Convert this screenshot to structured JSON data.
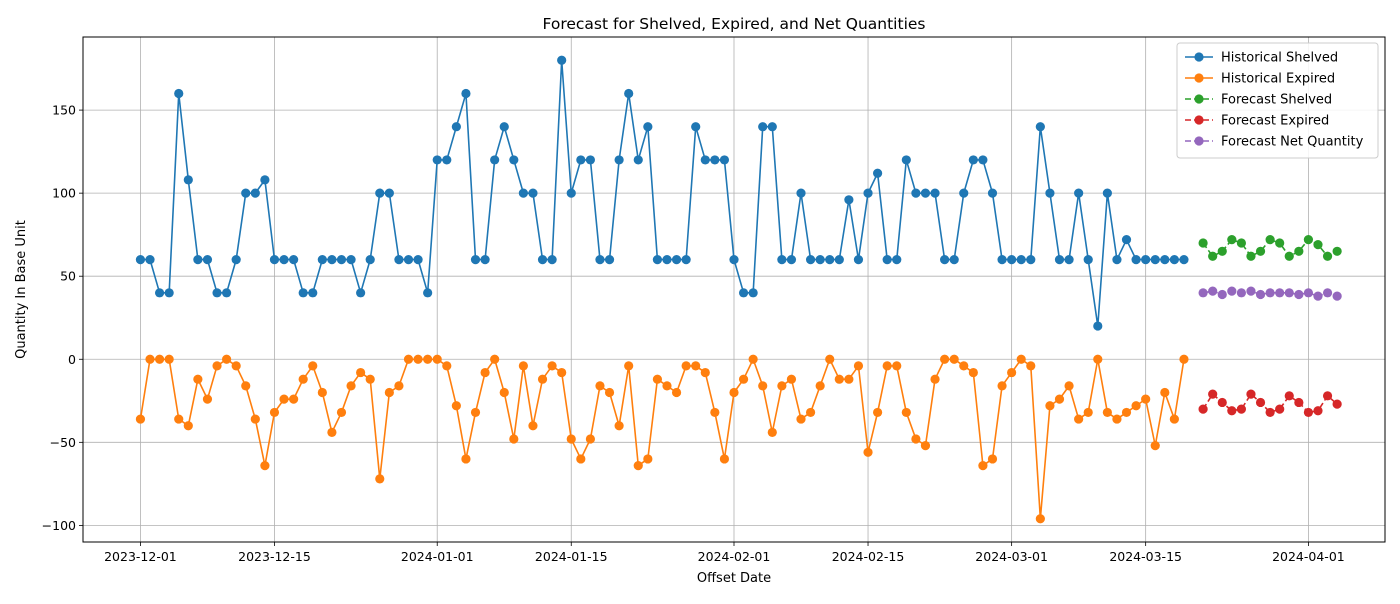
{
  "chart_data": {
    "type": "line",
    "title": "Forecast for Shelved, Expired, and Net Quantities",
    "xlabel": "Offset Date",
    "ylabel": "Quantity In Base Unit",
    "x_type": "date",
    "xlim": [
      "2023-11-25",
      "2024-04-09"
    ],
    "ylim": [
      -110,
      194
    ],
    "x_ticks": [
      "2023-12-01",
      "2023-12-15",
      "2024-01-01",
      "2024-01-15",
      "2024-02-01",
      "2024-02-15",
      "2024-03-01",
      "2024-03-15",
      "2024-04-01"
    ],
    "y_ticks": [
      -100,
      -50,
      0,
      50,
      100,
      150
    ],
    "grid": true,
    "legend_position": "upper right",
    "series": [
      {
        "name": "Historical Shelved",
        "color": "#1f77b4",
        "linestyle": "solid",
        "marker": "circle",
        "start_date": "2023-12-01",
        "values": [
          60,
          60,
          40,
          40,
          160,
          108,
          60,
          60,
          40,
          40,
          60,
          100,
          100,
          108,
          60,
          60,
          60,
          40,
          40,
          60,
          60,
          60,
          60,
          40,
          60,
          100,
          100,
          60,
          60,
          60,
          40,
          120,
          120,
          140,
          160,
          60,
          60,
          120,
          140,
          120,
          100,
          100,
          60,
          60,
          180,
          100,
          120,
          120,
          60,
          60,
          120,
          160,
          120,
          140,
          60,
          60,
          60,
          60,
          140,
          120,
          120,
          120,
          60,
          40,
          40,
          140,
          140,
          60,
          60,
          100,
          60,
          60,
          60,
          60,
          96,
          60,
          100,
          112,
          60,
          60,
          120,
          100,
          100,
          100,
          60,
          60,
          100,
          120,
          120,
          100,
          60,
          60,
          60,
          60,
          140,
          100,
          60,
          60,
          100,
          60,
          20,
          100,
          60,
          72,
          60,
          60,
          60,
          60,
          60,
          60
        ]
      },
      {
        "name": "Historical Expired",
        "color": "#ff7f0e",
        "linestyle": "solid",
        "marker": "circle",
        "start_date": "2023-12-01",
        "values": [
          -36,
          0,
          0,
          0,
          -36,
          -40,
          -12,
          -24,
          -4,
          0,
          -4,
          -16,
          -36,
          -64,
          -32,
          -24,
          -24,
          -12,
          -4,
          -20,
          -44,
          -32,
          -16,
          -8,
          -12,
          -72,
          -20,
          -16,
          0,
          0,
          0,
          0,
          -4,
          -28,
          -60,
          -32,
          -8,
          0,
          -20,
          -48,
          -4,
          -40,
          -12,
          -4,
          -8,
          -48,
          -60,
          -48,
          -16,
          -20,
          -40,
          -4,
          -64,
          -60,
          -12,
          -16,
          -20,
          -4,
          -4,
          -8,
          -32,
          -60,
          -20,
          -12,
          0,
          -16,
          -44,
          -16,
          -12,
          -36,
          -32,
          -16,
          0,
          -12,
          -12,
          -4,
          -56,
          -32,
          -4,
          -4,
          -32,
          -48,
          -52,
          -12,
          0,
          0,
          -4,
          -8,
          -64,
          -60,
          -16,
          -8,
          0,
          -4,
          -96,
          -28,
          -24,
          -16,
          -36,
          -32,
          0,
          -32,
          -36,
          -32,
          -28,
          -24,
          -52,
          -20,
          -36,
          0
        ]
      },
      {
        "name": "Forecast Shelved",
        "color": "#2ca02c",
        "linestyle": "dashed",
        "marker": "circle",
        "start_date": "2024-03-21",
        "values": [
          70,
          62,
          65,
          72,
          70,
          62,
          65,
          72,
          70,
          62,
          65,
          72,
          69,
          62,
          65
        ]
      },
      {
        "name": "Forecast Expired",
        "color": "#d62728",
        "linestyle": "dashed",
        "marker": "circle",
        "start_date": "2024-03-21",
        "values": [
          -30,
          -21,
          -26,
          -31,
          -30,
          -21,
          -26,
          -32,
          -30,
          -22,
          -26,
          -32,
          -31,
          -22,
          -27
        ]
      },
      {
        "name": "Forecast Net Quantity",
        "color": "#9467bd",
        "linestyle": "dashed",
        "marker": "circle",
        "start_date": "2024-03-21",
        "values": [
          40,
          41,
          39,
          41,
          40,
          41,
          39,
          40,
          40,
          40,
          39,
          40,
          38,
          40,
          38
        ]
      }
    ]
  }
}
